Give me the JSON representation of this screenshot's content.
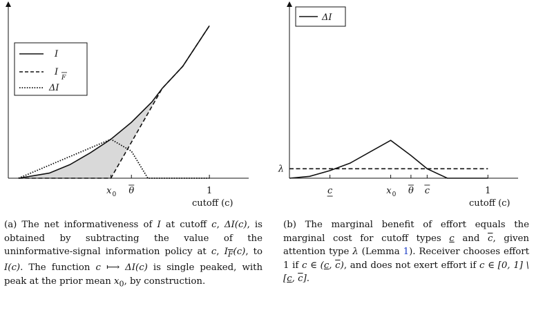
{
  "figure": {
    "left_panel": {
      "chart_data": {
        "type": "line",
        "xlabel": "cutoff (c)",
        "xlim": [
          0,
          1.02
        ],
        "ylim": [
          0,
          0.95
        ],
        "x_ticks": [
          {
            "value": 0.5,
            "label": "x",
            "sub": "0"
          },
          {
            "value": 0.6,
            "label": "θ"
          },
          {
            "value": 0.98,
            "label": "1"
          }
        ],
        "legend": {
          "position": "left-middle",
          "entries": [
            {
              "label": "I",
              "style": "solid"
            },
            {
              "label": "I",
              "sub": "F",
              "style": "dashed"
            },
            {
              "label": "ΔI",
              "style": "dotted"
            }
          ]
        },
        "series": [
          {
            "name": "I",
            "style": "solid",
            "x": [
              0.05,
              0.2,
              0.3,
              0.4,
              0.5,
              0.6,
              0.7,
              0.75,
              0.85,
              0.98
            ],
            "y": [
              0.0,
              0.03,
              0.08,
              0.15,
              0.23,
              0.33,
              0.45,
              0.53,
              0.66,
              0.9
            ]
          },
          {
            "name": "I_F",
            "style": "dashed",
            "x": [
              0.05,
              0.5,
              0.75,
              0.85,
              0.98
            ],
            "y": [
              0.0,
              0.0,
              0.53,
              0.66,
              0.9
            ]
          },
          {
            "name": "ΔI",
            "style": "dotted",
            "x": [
              0.05,
              0.5,
              0.6,
              0.68,
              0.98
            ],
            "y": [
              0.0,
              0.23,
              0.16,
              0.0,
              0.0
            ]
          }
        ],
        "shaded_region": "between I and I_F from 0.05 to 0.75",
        "shade_color": "#d9d9d9"
      }
    },
    "right_panel": {
      "chart_data": {
        "type": "line",
        "xlabel": "cutoff (c)",
        "xlim": [
          0,
          1.02
        ],
        "ylim": [
          0,
          0.85
        ],
        "y_ticks": [
          {
            "value": 0.05,
            "label": "λ"
          }
        ],
        "x_ticks": [
          {
            "value": 0.2,
            "label": "c",
            "deco": "underline"
          },
          {
            "value": 0.5,
            "label": "x",
            "sub": "0"
          },
          {
            "value": 0.6,
            "label": "θ",
            "deco": "overline"
          },
          {
            "value": 0.68,
            "label": "c",
            "deco": "overline"
          },
          {
            "value": 0.98,
            "label": "1"
          }
        ],
        "legend": {
          "position": "top-left",
          "entries": [
            {
              "label": "ΔI",
              "style": "solid"
            }
          ]
        },
        "series": [
          {
            "name": "ΔI",
            "style": "solid",
            "x": [
              0.0,
              0.1,
              0.2,
              0.3,
              0.4,
              0.5,
              0.6,
              0.68,
              0.78,
              0.98
            ],
            "y": [
              0.0,
              0.01,
              0.04,
              0.08,
              0.14,
              0.2,
              0.12,
              0.05,
              0.0,
              0.0
            ]
          },
          {
            "name": "λ",
            "style": "dashed",
            "x": [
              0.0,
              0.98
            ],
            "y": [
              0.05,
              0.05
            ]
          }
        ]
      }
    }
  },
  "captions": {
    "a": {
      "label": "(a)",
      "t1": "The net informativeness of ",
      "m_I": "I",
      "t2": " at cutoff ",
      "m_c1": "c",
      "t3": ", ",
      "m_dIc": "ΔI(c)",
      "t4": ", is obtained by subtracting the value of the uninformative-signal information policy at ",
      "m_c2": "c",
      "t5": ", ",
      "m_IFc": "I",
      "m_IF_sub": "F",
      "m_IF_arg": "(c)",
      "t6": ", to ",
      "m_Ic": "I(c)",
      "t7": ". The function ",
      "m_map": "c ⟼ ΔI(c)",
      "t8": " is single peaked, with peak at the prior mean ",
      "m_x0": "x",
      "m_x0_sub": "0",
      "t9": ", by construction."
    },
    "b": {
      "label": "(b)",
      "t1": "The marginal benefit of effort equals the marginal cost for cutoff types ",
      "m_clo": "c",
      "t2": " and ",
      "m_chi": "c",
      "t3": ", given attention type ",
      "m_lambda": "λ",
      "t4": " (Lemma ",
      "ref": "1",
      "t5": "). Receiver chooses effort 1 if ",
      "m_cin": "c ∈ (",
      "m_c_lo2": "c",
      "m_comma": ", ",
      "m_c_hi2": "c",
      "m_close": ")",
      "t6": ", and does not exert effort if ",
      "m_set": "c ∈ [0, 1] \\ [",
      "m_c_lo3": "c",
      "m_comma2": ", ",
      "m_c_hi3": "c",
      "m_close2": "]",
      "t7": "."
    }
  }
}
